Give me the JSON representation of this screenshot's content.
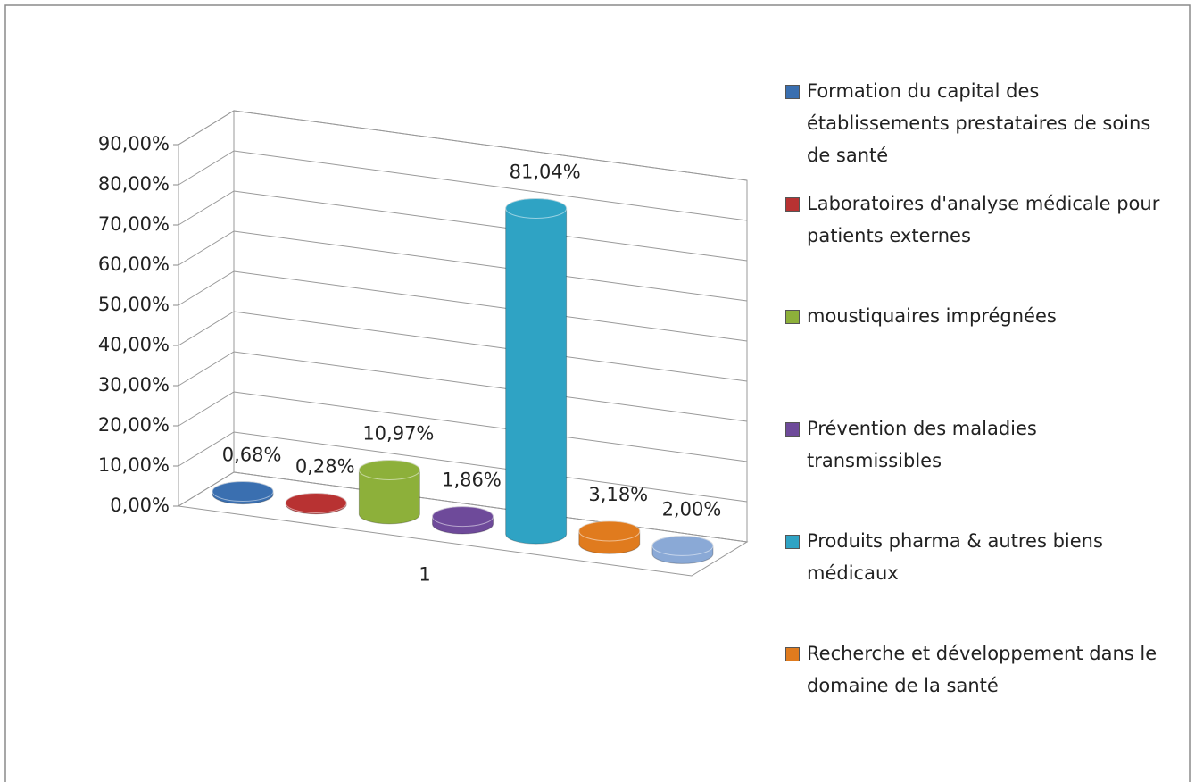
{
  "chart_data": {
    "type": "bar3d",
    "categories": [
      "1"
    ],
    "series": [
      {
        "name": "Formation du capital des établissements prestataires de soins de santé",
        "color": "#3a6fb0",
        "values": [
          0.68
        ],
        "value_labels": [
          "0,68%"
        ]
      },
      {
        "name": "Laboratoires d'analyse médicale pour patients externes",
        "color": "#b83232",
        "values": [
          0.28
        ],
        "value_labels": [
          "0,28%"
        ]
      },
      {
        "name": "moustiquaires imprégnées",
        "color": "#8db03a",
        "values": [
          10.97
        ],
        "value_labels": [
          "10,97%"
        ]
      },
      {
        "name": "Prévention des maladies transmissibles",
        "color": "#6e4a9a",
        "values": [
          1.86
        ],
        "value_labels": [
          "1,86%"
        ]
      },
      {
        "name": "Produits pharma & autres biens médicaux",
        "color": "#2fa3c4",
        "values": [
          81.04
        ],
        "value_labels": [
          "81,04%"
        ]
      },
      {
        "name": "Recherche et développement dans le domaine de la santé",
        "color": "#e07b1e",
        "values": [
          3.18
        ],
        "value_labels": [
          "3,18%"
        ]
      },
      {
        "color": "#8aa9d6",
        "values": [
          2.0
        ],
        "value_labels": [
          "2,00%"
        ]
      }
    ],
    "ylim": [
      0,
      90
    ],
    "yticks": [
      {
        "value": 0,
        "label": "0,00%"
      },
      {
        "value": 10,
        "label": "10,00%"
      },
      {
        "value": 20,
        "label": "20,00%"
      },
      {
        "value": 30,
        "label": "30,00%"
      },
      {
        "value": 40,
        "label": "40,00%"
      },
      {
        "value": 50,
        "label": "50,00%"
      },
      {
        "value": 60,
        "label": "60,00%"
      },
      {
        "value": 70,
        "label": "70,00%"
      },
      {
        "value": 80,
        "label": "80,00%"
      },
      {
        "value": 90,
        "label": "90,00%"
      }
    ],
    "grid": true,
    "legend": "right"
  }
}
